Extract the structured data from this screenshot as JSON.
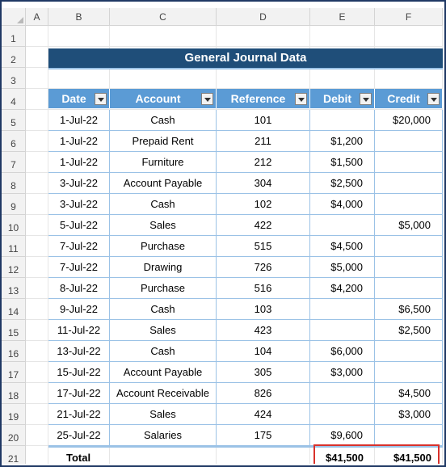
{
  "columns": [
    "A",
    "B",
    "C",
    "D",
    "E",
    "F"
  ],
  "rows": [
    "1",
    "2",
    "3",
    "4",
    "5",
    "6",
    "7",
    "8",
    "9",
    "10",
    "11",
    "12",
    "13",
    "14",
    "15",
    "16",
    "17",
    "18",
    "19",
    "20",
    "21"
  ],
  "title": "General Journal Data",
  "headers": [
    "Date",
    "Account",
    "Reference",
    "Debit",
    "Credit"
  ],
  "entries": [
    {
      "date": "1-Jul-22",
      "account": "Cash",
      "ref": "101",
      "debit": "",
      "credit": "$20,000"
    },
    {
      "date": "1-Jul-22",
      "account": "Prepaid Rent",
      "ref": "211",
      "debit": "$1,200",
      "credit": ""
    },
    {
      "date": "1-Jul-22",
      "account": "Furniture",
      "ref": "212",
      "debit": "$1,500",
      "credit": ""
    },
    {
      "date": "3-Jul-22",
      "account": "Account Payable",
      "ref": "304",
      "debit": "$2,500",
      "credit": ""
    },
    {
      "date": "3-Jul-22",
      "account": "Cash",
      "ref": "102",
      "debit": "$4,000",
      "credit": ""
    },
    {
      "date": "5-Jul-22",
      "account": "Sales",
      "ref": "422",
      "debit": "",
      "credit": "$5,000"
    },
    {
      "date": "7-Jul-22",
      "account": "Purchase",
      "ref": "515",
      "debit": "$4,500",
      "credit": ""
    },
    {
      "date": "7-Jul-22",
      "account": "Drawing",
      "ref": "726",
      "debit": "$5,000",
      "credit": ""
    },
    {
      "date": "8-Jul-22",
      "account": "Purchase",
      "ref": "516",
      "debit": "$4,200",
      "credit": ""
    },
    {
      "date": "9-Jul-22",
      "account": "Cash",
      "ref": "103",
      "debit": "",
      "credit": "$6,500"
    },
    {
      "date": "11-Jul-22",
      "account": "Sales",
      "ref": "423",
      "debit": "",
      "credit": "$2,500"
    },
    {
      "date": "13-Jul-22",
      "account": "Cash",
      "ref": "104",
      "debit": "$6,000",
      "credit": ""
    },
    {
      "date": "15-Jul-22",
      "account": "Account Payable",
      "ref": "305",
      "debit": "$3,000",
      "credit": ""
    },
    {
      "date": "17-Jul-22",
      "account": "Account Receivable",
      "ref": "826",
      "debit": "",
      "credit": "$4,500"
    },
    {
      "date": "21-Jul-22",
      "account": "Sales",
      "ref": "424",
      "debit": "",
      "credit": "$3,000"
    },
    {
      "date": "25-Jul-22",
      "account": "Salaries",
      "ref": "175",
      "debit": "$9,600",
      "credit": ""
    }
  ],
  "total": {
    "label": "Total",
    "debit": "$41,500",
    "credit": "$41,500"
  }
}
